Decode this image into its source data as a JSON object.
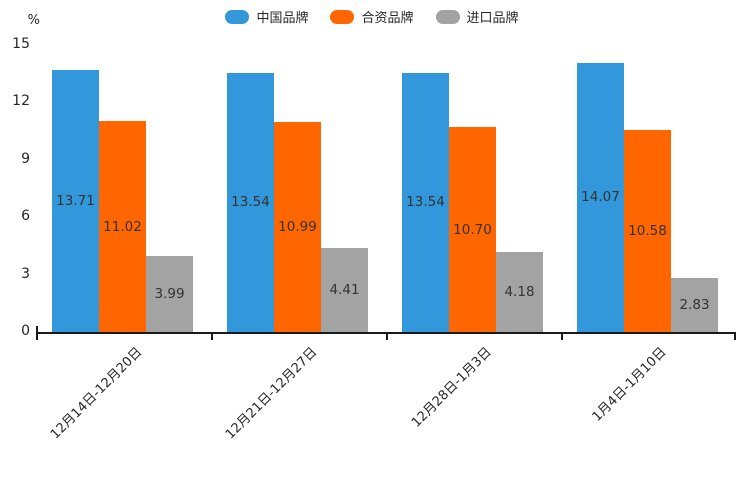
{
  "chart_data": {
    "type": "bar",
    "title": "",
    "xlabel": "",
    "ylabel": "%",
    "ylim": [
      0,
      15
    ],
    "yticks": [
      0,
      3,
      6,
      9,
      12,
      15
    ],
    "grid": false,
    "legend_position": "top-center",
    "bar_value_labels": true,
    "categories": [
      "12月14日-12月20日",
      "12月21日-12月27日",
      "12月28日-1月3日",
      "1月4日-1月10日"
    ],
    "series": [
      {
        "name": "中国品牌",
        "color": "#3398db",
        "values": [
          13.71,
          13.54,
          13.54,
          14.07
        ]
      },
      {
        "name": "合资品牌",
        "color": "#ff6600",
        "values": [
          11.02,
          10.99,
          10.7,
          10.58
        ]
      },
      {
        "name": "进口品牌",
        "color": "#a3a3a3",
        "values": [
          3.99,
          4.41,
          4.18,
          2.83
        ]
      }
    ],
    "colors": {
      "axis": "#1a1a1a",
      "tick_label": "#262626",
      "bar_label": "#333333",
      "background": "#ffffff"
    }
  }
}
